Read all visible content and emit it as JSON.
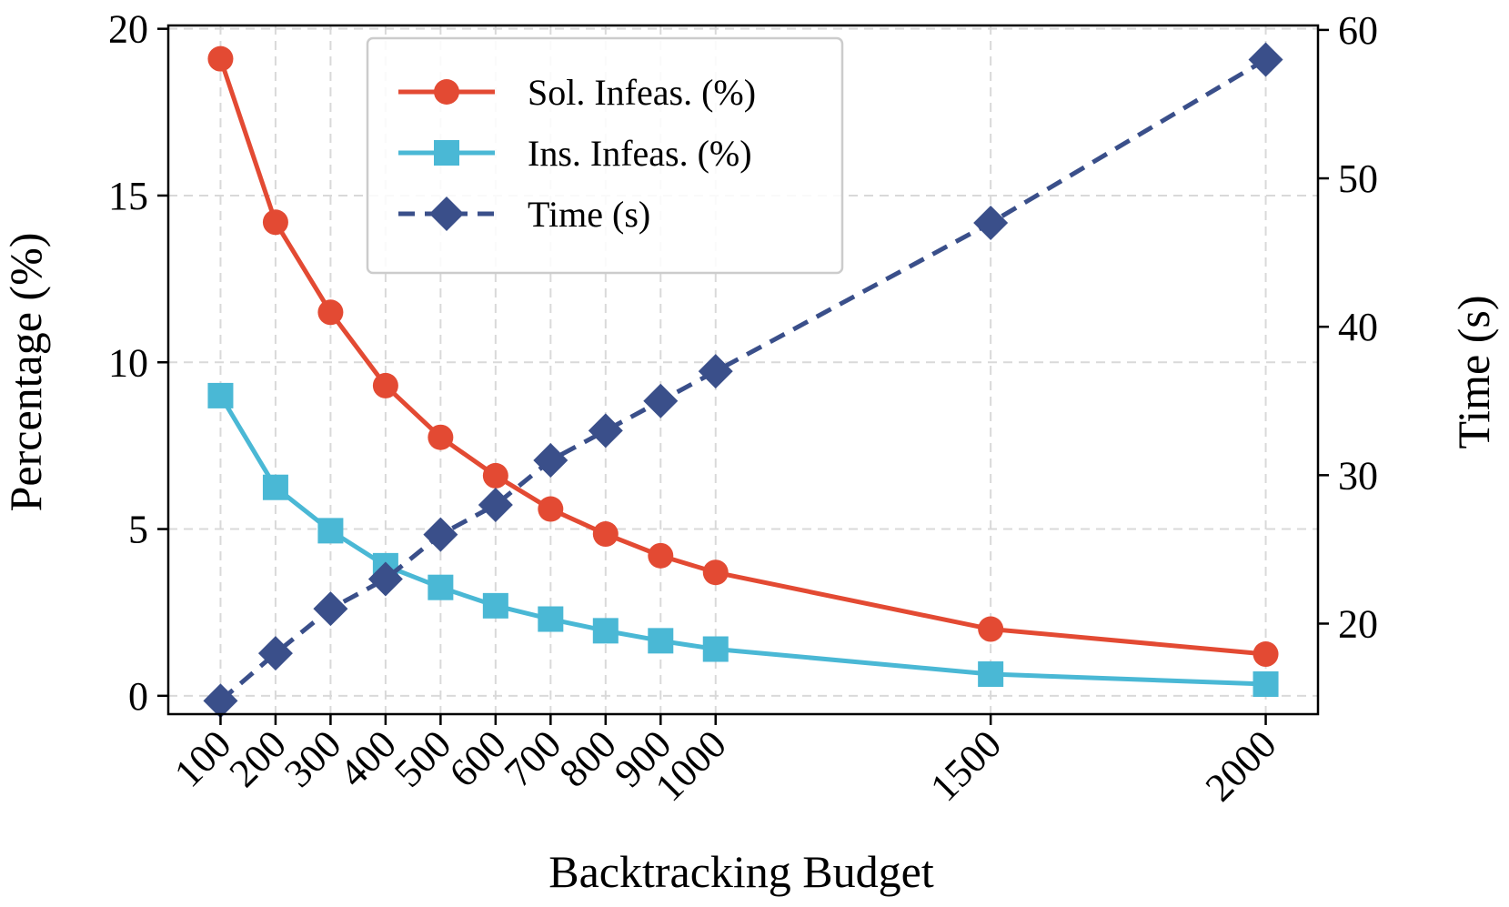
{
  "chart_data": {
    "type": "line",
    "title": "",
    "xlabel": "Backtracking Budget",
    "ylabel": "Percentage (%)",
    "y2label": "Time (s)",
    "x": [
      100,
      200,
      300,
      400,
      500,
      600,
      700,
      800,
      900,
      1000,
      1500,
      2000
    ],
    "x_tick_labels": [
      "100",
      "200",
      "300",
      "400",
      "500",
      "600",
      "700",
      "800",
      "900",
      "1000",
      "1500",
      "2000"
    ],
    "y_ticks": [
      0,
      5,
      10,
      15,
      20
    ],
    "y_tick_labels": [
      "0",
      "5",
      "10",
      "15",
      "20"
    ],
    "y2_ticks": [
      20,
      30,
      40,
      50,
      60
    ],
    "y2_tick_labels": [
      "20",
      "30",
      "40",
      "50",
      "60"
    ],
    "xlim": [
      5,
      2095
    ],
    "ylim": [
      -0.55,
      20.1
    ],
    "y2lim": [
      13.9,
      60.3
    ],
    "grid": true,
    "legend_position": "top-center",
    "series": [
      {
        "name": "Sol. Infeas. (%)",
        "axis": "left",
        "color": "#e34a33",
        "marker": "circle",
        "line_style": "solid",
        "values": [
          19.1,
          14.2,
          11.5,
          9.3,
          7.75,
          6.6,
          5.6,
          4.85,
          4.2,
          3.7,
          2.0,
          1.25
        ]
      },
      {
        "name": "Ins. Infeas. (%)",
        "axis": "left",
        "color": "#4ab8d5",
        "marker": "square",
        "line_style": "solid",
        "values": [
          9.0,
          6.25,
          4.95,
          3.9,
          3.25,
          2.7,
          2.3,
          1.95,
          1.65,
          1.4,
          0.65,
          0.35
        ]
      },
      {
        "name": "Time (s)",
        "axis": "right",
        "color": "#3a4f8a",
        "marker": "diamond",
        "line_style": "dashed",
        "values": [
          14.8,
          18.0,
          21.0,
          23.0,
          26.0,
          28.0,
          31.0,
          33.0,
          35.0,
          37.0,
          47.0,
          58.0
        ]
      }
    ]
  }
}
